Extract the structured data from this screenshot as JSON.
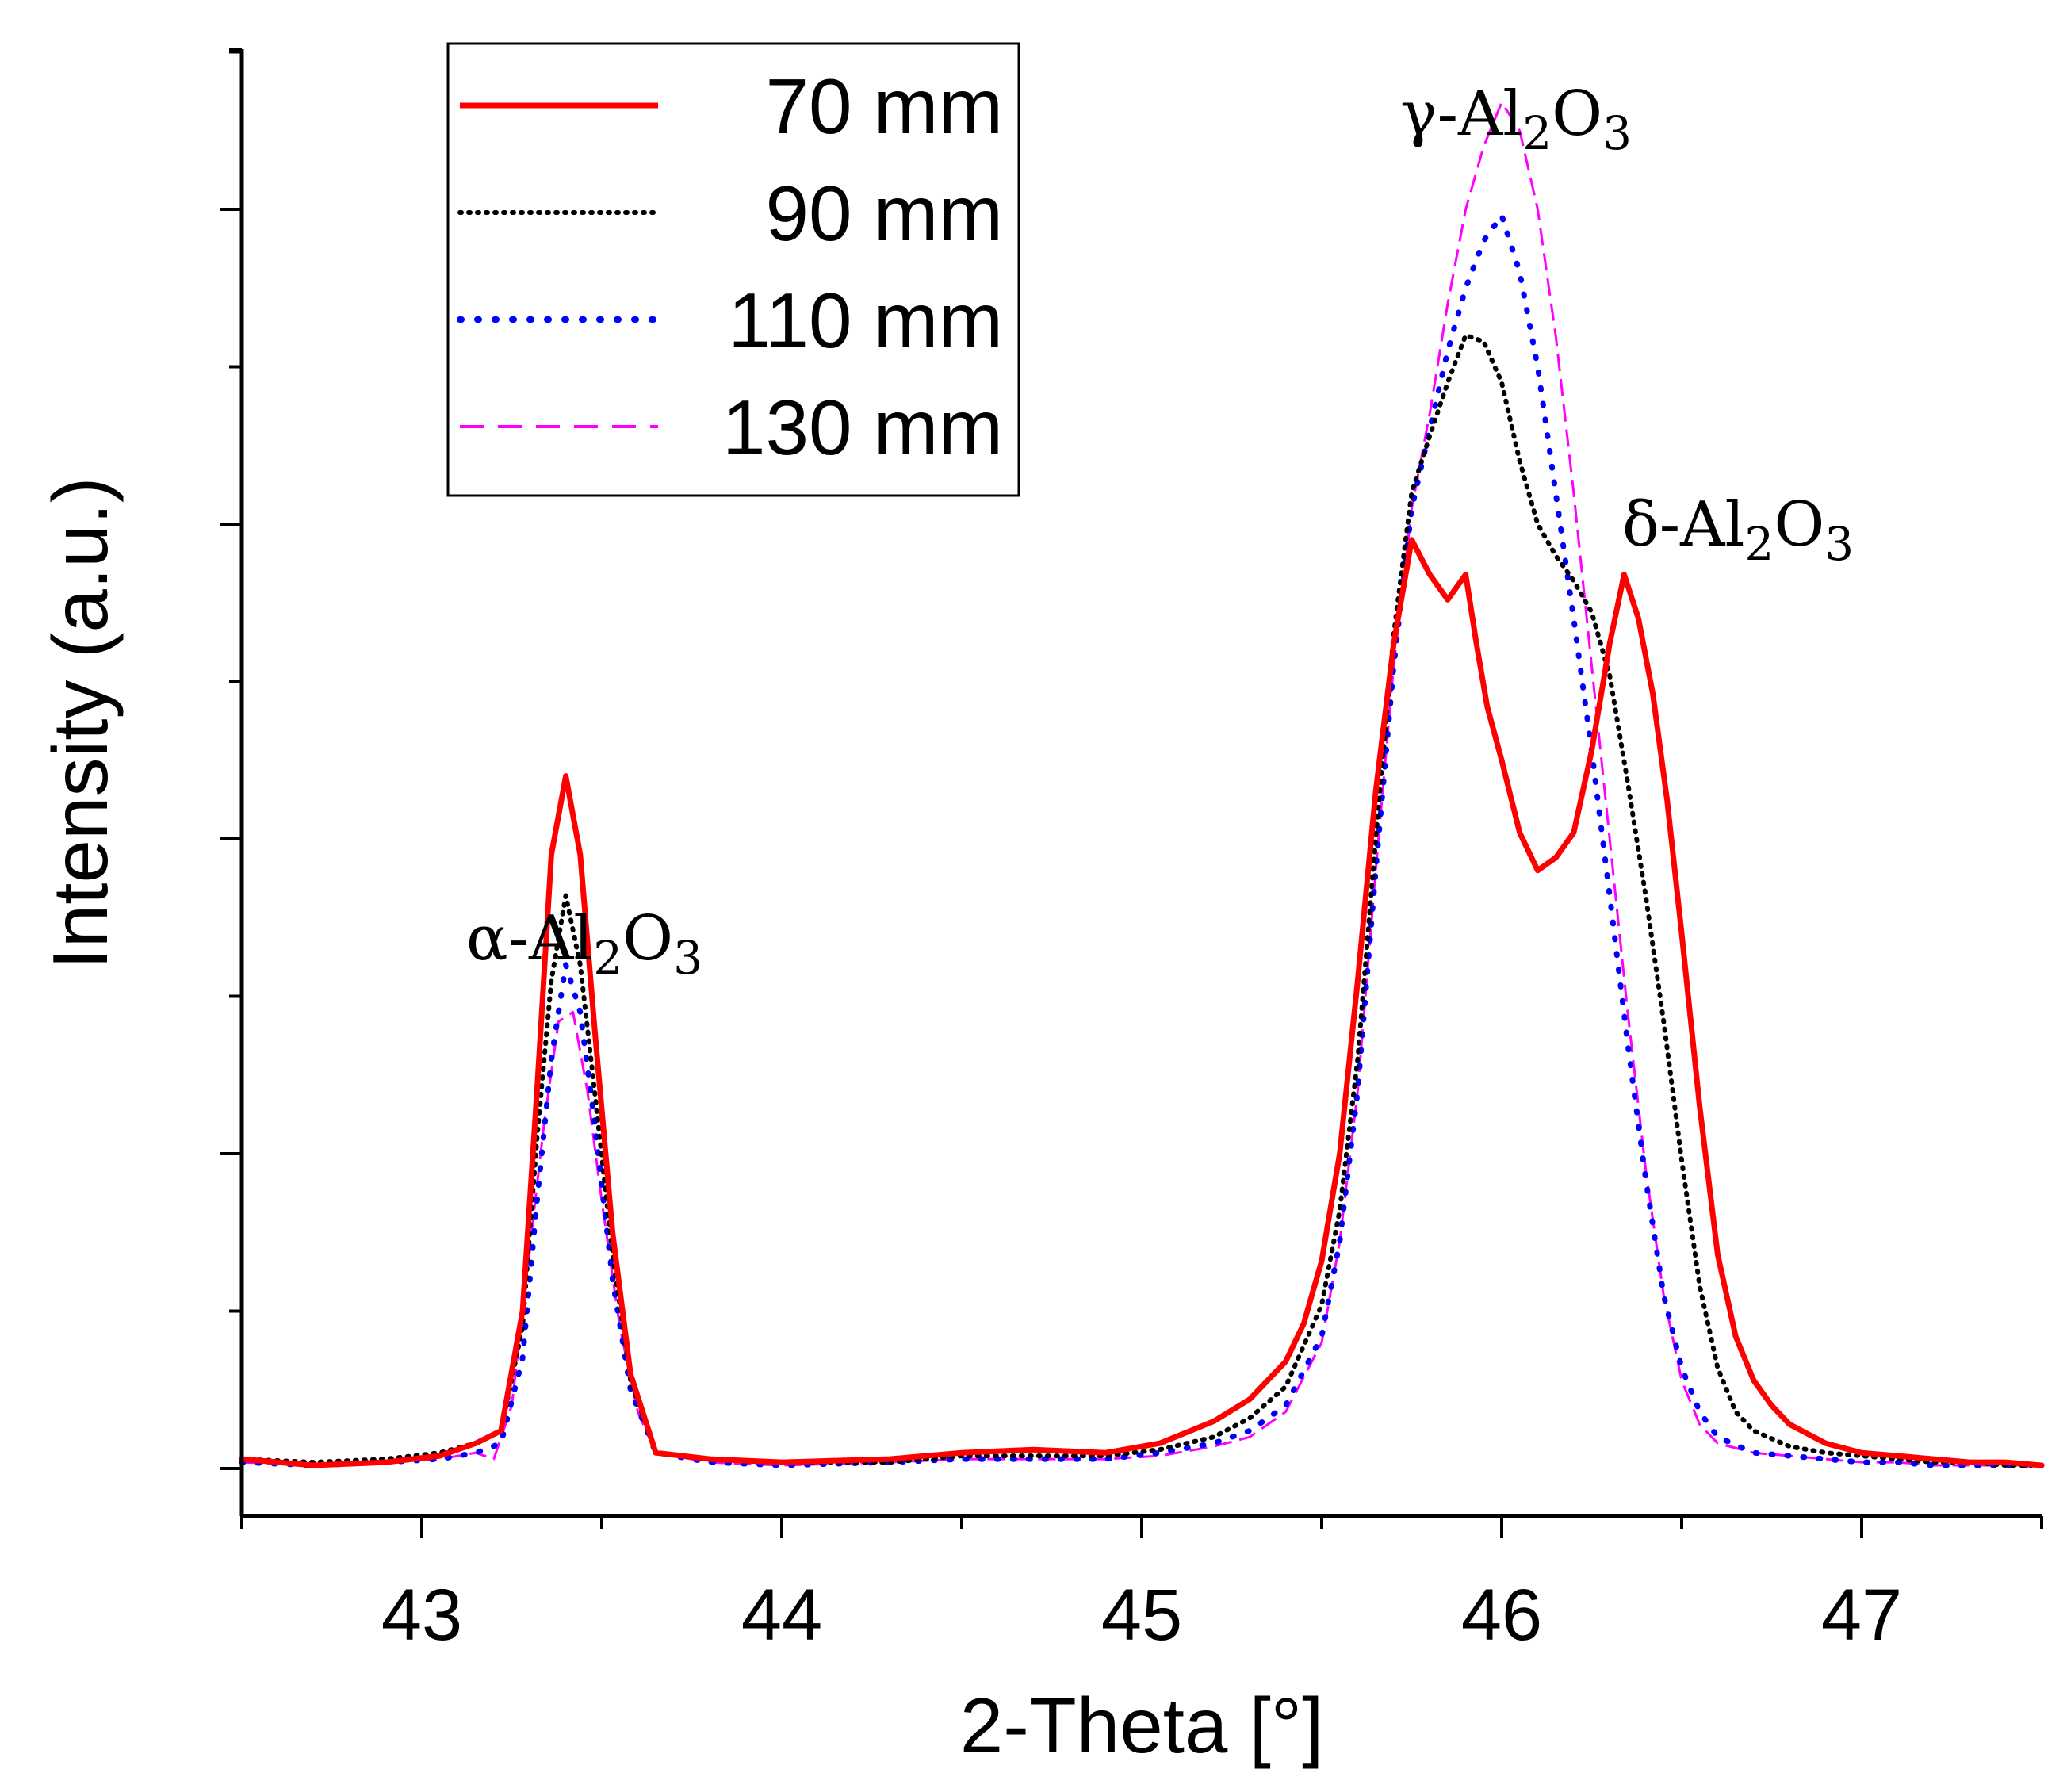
{
  "chart_data": {
    "type": "line",
    "title": "",
    "xlabel": "2-Theta [°]",
    "ylabel": "Intensity (a.u.)",
    "xlim": [
      42.5,
      47.5
    ],
    "ylim": [
      -0.1,
      4.5
    ],
    "xticks": [
      43,
      44,
      45,
      46,
      47
    ],
    "yticks_major": [
      0,
      1,
      2,
      3,
      4
    ],
    "y_tick_labels_shown": false,
    "legend": {
      "position": "top-left"
    },
    "series": [
      {
        "name": "70 mm",
        "color": "#ff0000",
        "style": "solid",
        "x": [
          42.5,
          42.7,
          42.9,
          43.05,
          43.15,
          43.22,
          43.28,
          43.32,
          43.36,
          43.4,
          43.44,
          43.48,
          43.53,
          43.58,
          43.65,
          43.8,
          44.0,
          44.3,
          44.5,
          44.7,
          44.9,
          45.05,
          45.2,
          45.3,
          45.4,
          45.45,
          45.5,
          45.55,
          45.6,
          45.65,
          45.7,
          45.75,
          45.8,
          45.85,
          45.9,
          45.93,
          45.96,
          46.0,
          46.05,
          46.1,
          46.15,
          46.2,
          46.25,
          46.3,
          46.34,
          46.38,
          46.42,
          46.46,
          46.5,
          46.55,
          46.6,
          46.65,
          46.7,
          46.75,
          46.8,
          46.9,
          47.0,
          47.1,
          47.2,
          47.3,
          47.4,
          47.5
        ],
        "y": [
          0.03,
          0.01,
          0.02,
          0.04,
          0.08,
          0.12,
          0.5,
          1.2,
          1.95,
          2.2,
          1.95,
          1.4,
          0.75,
          0.3,
          0.05,
          0.03,
          0.02,
          0.03,
          0.05,
          0.06,
          0.05,
          0.08,
          0.15,
          0.22,
          0.34,
          0.46,
          0.66,
          1.0,
          1.55,
          2.15,
          2.62,
          2.95,
          2.84,
          2.76,
          2.84,
          2.62,
          2.42,
          2.25,
          2.02,
          1.9,
          1.94,
          2.02,
          2.28,
          2.62,
          2.84,
          2.7,
          2.46,
          2.12,
          1.7,
          1.15,
          0.68,
          0.42,
          0.28,
          0.2,
          0.14,
          0.08,
          0.05,
          0.04,
          0.03,
          0.02,
          0.02,
          0.01
        ]
      },
      {
        "name": "90 mm",
        "color": "#000000",
        "style": "dotted",
        "x": [
          42.5,
          42.7,
          42.9,
          43.05,
          43.15,
          43.22,
          43.28,
          43.32,
          43.36,
          43.4,
          43.44,
          43.48,
          43.53,
          43.58,
          43.65,
          43.8,
          44.0,
          44.3,
          44.5,
          44.7,
          44.9,
          45.05,
          45.2,
          45.3,
          45.4,
          45.5,
          45.55,
          45.6,
          45.65,
          45.7,
          45.75,
          45.8,
          45.85,
          45.9,
          45.95,
          46.0,
          46.05,
          46.1,
          46.15,
          46.2,
          46.25,
          46.3,
          46.35,
          46.4,
          46.45,
          46.5,
          46.55,
          46.6,
          46.65,
          46.7,
          46.8,
          46.9,
          47.0,
          47.1,
          47.2,
          47.3,
          47.4,
          47.5
        ],
        "y": [
          0.03,
          0.02,
          0.03,
          0.05,
          0.08,
          0.12,
          0.45,
          1.05,
          1.55,
          1.82,
          1.6,
          1.2,
          0.68,
          0.28,
          0.05,
          0.03,
          0.02,
          0.02,
          0.04,
          0.04,
          0.04,
          0.06,
          0.1,
          0.16,
          0.26,
          0.52,
          0.82,
          1.3,
          2.0,
          2.65,
          3.1,
          3.28,
          3.45,
          3.6,
          3.58,
          3.45,
          3.2,
          3.0,
          2.9,
          2.82,
          2.72,
          2.52,
          2.18,
          1.82,
          1.42,
          0.98,
          0.58,
          0.32,
          0.18,
          0.12,
          0.07,
          0.05,
          0.04,
          0.03,
          0.02,
          0.02,
          0.01,
          0.01
        ]
      },
      {
        "name": "110 mm",
        "color": "#0000ff",
        "style": "dotted",
        "x": [
          42.5,
          42.7,
          42.9,
          43.05,
          43.15,
          43.22,
          43.28,
          43.32,
          43.36,
          43.4,
          43.44,
          43.48,
          43.53,
          43.58,
          43.65,
          43.8,
          44.0,
          44.3,
          44.5,
          44.7,
          44.9,
          45.05,
          45.2,
          45.3,
          45.4,
          45.5,
          45.55,
          45.6,
          45.65,
          45.7,
          45.75,
          45.8,
          45.85,
          45.9,
          45.95,
          46.0,
          46.05,
          46.1,
          46.15,
          46.2,
          46.25,
          46.3,
          46.35,
          46.4,
          46.45,
          46.5,
          46.55,
          46.6,
          46.7,
          46.8,
          46.9,
          47.0,
          47.1,
          47.2,
          47.3,
          47.4,
          47.5
        ],
        "y": [
          0.02,
          0.01,
          0.02,
          0.03,
          0.05,
          0.08,
          0.35,
          0.85,
          1.3,
          1.6,
          1.45,
          1.1,
          0.6,
          0.25,
          0.05,
          0.02,
          0.01,
          0.02,
          0.03,
          0.03,
          0.03,
          0.05,
          0.08,
          0.12,
          0.2,
          0.42,
          0.72,
          1.2,
          1.9,
          2.55,
          3.05,
          3.3,
          3.55,
          3.75,
          3.9,
          3.98,
          3.8,
          3.5,
          3.1,
          2.7,
          2.28,
          1.82,
          1.35,
          0.92,
          0.55,
          0.32,
          0.18,
          0.1,
          0.05,
          0.04,
          0.03,
          0.02,
          0.02,
          0.01,
          0.01,
          0.01,
          0.01
        ]
      },
      {
        "name": "130 mm",
        "color": "#ff00ff",
        "style": "dashed",
        "x": [
          42.5,
          42.7,
          42.9,
          43.05,
          43.15,
          43.2,
          43.25,
          43.3,
          43.34,
          43.38,
          43.42,
          43.46,
          43.5,
          43.55,
          43.6,
          43.65,
          43.8,
          44.0,
          44.3,
          44.5,
          44.7,
          44.9,
          45.05,
          45.2,
          45.3,
          45.4,
          45.5,
          45.55,
          45.6,
          45.65,
          45.7,
          45.75,
          45.8,
          45.85,
          45.9,
          45.95,
          46.0,
          46.05,
          46.1,
          46.15,
          46.2,
          46.25,
          46.3,
          46.35,
          46.4,
          46.45,
          46.5,
          46.55,
          46.6,
          46.7,
          46.8,
          46.9,
          47.0,
          47.1,
          47.2,
          47.3,
          47.4,
          47.5
        ],
        "y": [
          0.02,
          0.01,
          0.02,
          0.03,
          0.05,
          0.03,
          0.2,
          0.7,
          1.1,
          1.42,
          1.45,
          1.2,
          0.85,
          0.45,
          0.18,
          0.05,
          0.02,
          0.01,
          0.02,
          0.03,
          0.03,
          0.03,
          0.04,
          0.07,
          0.1,
          0.18,
          0.4,
          0.72,
          1.2,
          1.9,
          2.55,
          3.05,
          3.35,
          3.7,
          4.0,
          4.2,
          4.34,
          4.25,
          4.0,
          3.6,
          3.1,
          2.55,
          2.0,
          1.45,
          0.95,
          0.55,
          0.28,
          0.14,
          0.08,
          0.05,
          0.04,
          0.03,
          0.02,
          0.02,
          0.01,
          0.01,
          0.01,
          0.01
        ]
      }
    ],
    "annotations": [
      {
        "id": "alpha",
        "prefix": "α-Al",
        "sub1": "2",
        "mid": "O",
        "sub2": "3",
        "x": 43.4,
        "y": 2.5
      },
      {
        "id": "gamma",
        "prefix": "γ-Al",
        "sub1": "2",
        "mid": "O",
        "sub2": "3",
        "x": 46.05,
        "y": 4.4
      },
      {
        "id": "delta",
        "prefix": "δ-Al",
        "sub1": "2",
        "mid": "O",
        "sub2": "3",
        "x": 46.7,
        "y": 3.0
      }
    ]
  }
}
